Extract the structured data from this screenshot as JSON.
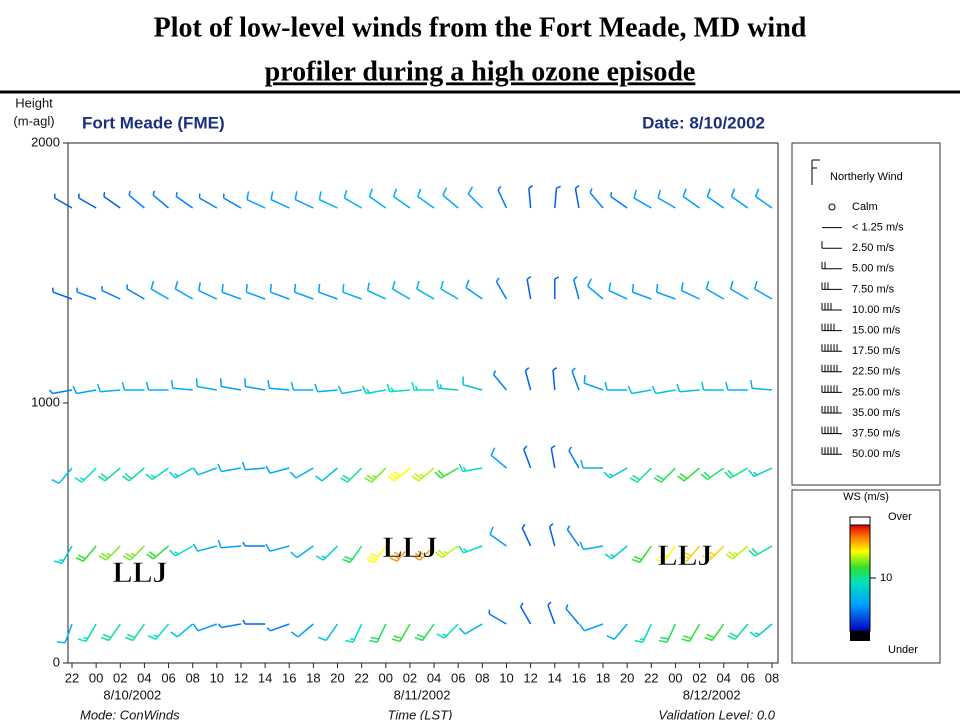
{
  "chart_data": {
    "type": "wind-barb",
    "title": [
      "Plot of low-level winds from the Fort Meade, MD wind",
      "profiler during a high ozone episode"
    ],
    "plot_title": "Fort Meade (FME)",
    "date_label": "Date:  8/10/2002",
    "ylabel": [
      "Height",
      "(m-agl)"
    ],
    "ylim": [
      0,
      2000
    ],
    "yticks": [
      0,
      1000,
      2000
    ],
    "categories": [
      "22",
      "00",
      "02",
      "04",
      "06",
      "08",
      "10",
      "12",
      "14",
      "16",
      "18",
      "20",
      "22",
      "00",
      "02",
      "04",
      "06",
      "08",
      "10",
      "12",
      "14",
      "16",
      "18",
      "20",
      "22",
      "00",
      "02",
      "04",
      "06",
      "08"
    ],
    "dates": [
      "8/10/2002",
      "8/11/2002",
      "8/12/2002"
    ],
    "xlabel": "Time (LST)",
    "mode": "Mode:  ConWinds",
    "validation": "Validation Level:  0.0",
    "levels": [
      150,
      450,
      750,
      1050,
      1400,
      1750
    ],
    "speed": [
      [
        6,
        9,
        10,
        10,
        9,
        7,
        5,
        4,
        3,
        4,
        5,
        7,
        9,
        11,
        12,
        11,
        9,
        6,
        4,
        3,
        3,
        4,
        5,
        6,
        9,
        11,
        12,
        12,
        10,
        8
      ],
      [
        8,
        12,
        13,
        13,
        12,
        9,
        6,
        5,
        4,
        5,
        6,
        8,
        11,
        15,
        17,
        17,
        14,
        9,
        5,
        3,
        3,
        4,
        6,
        8,
        12,
        15,
        16,
        16,
        14,
        10
      ],
      [
        7,
        9,
        10,
        10,
        9,
        8,
        7,
        6,
        5,
        5,
        6,
        7,
        10,
        13,
        15,
        14,
        12,
        9,
        5,
        3,
        3,
        4,
        6,
        8,
        10,
        11,
        12,
        11,
        10,
        8
      ],
      [
        4,
        5,
        6,
        6,
        6,
        6,
        6,
        5,
        5,
        5,
        6,
        6,
        7,
        8,
        9,
        9,
        8,
        7,
        4,
        3,
        3,
        4,
        5,
        6,
        7,
        7,
        7,
        7,
        6,
        6
      ],
      [
        3,
        4,
        4,
        4,
        5,
        5,
        5,
        5,
        5,
        5,
        5,
        5,
        6,
        6,
        6,
        6,
        6,
        5,
        4,
        3,
        3,
        4,
        5,
        5,
        5,
        5,
        5,
        5,
        5,
        5
      ],
      [
        3,
        3,
        3,
        4,
        4,
        4,
        4,
        4,
        5,
        5,
        5,
        6,
        6,
        6,
        6,
        6,
        6,
        5,
        4,
        3,
        3,
        3,
        4,
        4,
        5,
        5,
        5,
        5,
        5,
        5
      ]
    ],
    "direction": [
      [
        200,
        210,
        215,
        215,
        220,
        230,
        250,
        260,
        270,
        250,
        230,
        215,
        205,
        205,
        210,
        215,
        225,
        240,
        300,
        330,
        340,
        320,
        250,
        220,
        205,
        205,
        210,
        215,
        220,
        230
      ],
      [
        210,
        220,
        225,
        225,
        230,
        240,
        255,
        265,
        270,
        255,
        235,
        225,
        215,
        215,
        220,
        225,
        235,
        250,
        305,
        335,
        345,
        325,
        260,
        230,
        215,
        215,
        220,
        225,
        230,
        240
      ],
      [
        220,
        225,
        230,
        230,
        235,
        240,
        250,
        260,
        265,
        255,
        240,
        230,
        225,
        225,
        230,
        230,
        240,
        260,
        310,
        340,
        350,
        330,
        270,
        240,
        225,
        225,
        230,
        235,
        240,
        245
      ],
      [
        260,
        260,
        265,
        270,
        270,
        275,
        280,
        280,
        280,
        275,
        270,
        265,
        260,
        260,
        265,
        270,
        275,
        285,
        320,
        345,
        355,
        340,
        290,
        270,
        260,
        260,
        265,
        270,
        270,
        275
      ],
      [
        290,
        290,
        295,
        300,
        300,
        300,
        295,
        290,
        290,
        290,
        290,
        290,
        290,
        295,
        300,
        300,
        300,
        305,
        330,
        350,
        0,
        345,
        310,
        295,
        290,
        290,
        295,
        300,
        300,
        300
      ],
      [
        300,
        300,
        305,
        310,
        310,
        305,
        300,
        300,
        295,
        295,
        295,
        295,
        300,
        305,
        305,
        305,
        310,
        315,
        335,
        355,
        5,
        350,
        320,
        305,
        300,
        300,
        305,
        305,
        305,
        305
      ]
    ],
    "annotations": [
      "LLJ",
      "LLJ",
      "LLJ"
    ],
    "legend": {
      "title": "Northerly Wind",
      "entries": [
        "Calm",
        "< 1.25 m/s",
        "2.50 m/s",
        "5.00 m/s",
        "7.50 m/s",
        "10.00 m/s",
        "15.00 m/s",
        "17.50 m/s",
        "22.50 m/s",
        "25.00 m/s",
        "35.00 m/s",
        "37.50 m/s",
        "50.00 m/s"
      ]
    },
    "colorbar": {
      "title": "WS (m/s)",
      "over": "Over",
      "under": "Under",
      "clim": [
        0,
        20
      ],
      "ticks": [
        10
      ]
    }
  }
}
